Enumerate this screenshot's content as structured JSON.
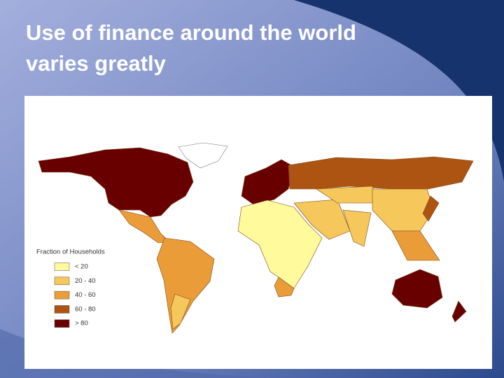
{
  "title_lines": [
    "Use of finance around the world",
    "varies greatly"
  ],
  "legend": {
    "title": "Fraction of Households",
    "items": [
      {
        "label": "< 20",
        "color": "#fffa9c"
      },
      {
        "label": "20 - 40",
        "color": "#f6c75a"
      },
      {
        "label": "40 - 60",
        "color": "#e99c37"
      },
      {
        "label": "60 - 80",
        "color": "#ae5412"
      },
      {
        "label": "> 80",
        "color": "#690000"
      }
    ]
  }
}
